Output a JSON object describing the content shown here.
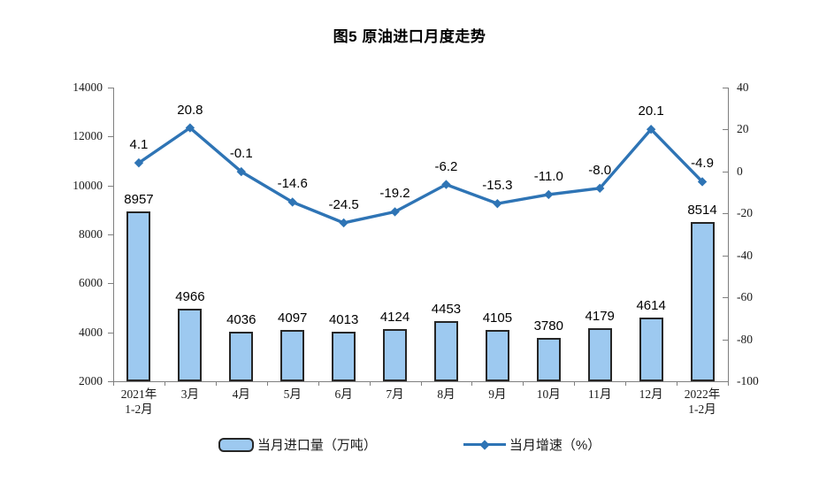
{
  "title": "图5 原油进口月度走势",
  "chart_data": {
    "type": "bar+line",
    "categories": [
      [
        "2021年",
        "1-2月"
      ],
      [
        "3月"
      ],
      [
        "4月"
      ],
      [
        "5月"
      ],
      [
        "6月"
      ],
      [
        "7月"
      ],
      [
        "8月"
      ],
      [
        "9月"
      ],
      [
        "10月"
      ],
      [
        "11月"
      ],
      [
        "12月"
      ],
      [
        "2022年",
        "1-2月"
      ]
    ],
    "series": [
      {
        "name": "当月进口量（万吨）",
        "type": "bar",
        "axis": "left",
        "values": [
          8957,
          4966,
          4036,
          4097,
          4013,
          4124,
          4453,
          4105,
          3780,
          4179,
          4614,
          8514
        ],
        "labels": [
          "8957",
          "4966",
          "4036",
          "4097",
          "4013",
          "4124",
          "4453",
          "4105",
          "3780",
          "4179",
          "4614",
          "8514"
        ],
        "fill": "#9DC9F0",
        "border": "#262626"
      },
      {
        "name": "当月增速（%）",
        "type": "line",
        "axis": "right",
        "values": [
          4.1,
          20.8,
          -0.1,
          -14.6,
          -24.5,
          -19.2,
          -6.2,
          -15.3,
          -11.0,
          -8.0,
          20.1,
          -4.9
        ],
        "labels": [
          "4.1",
          "20.8",
          "-0.1",
          "-14.6",
          "-24.5",
          "-19.2",
          "-6.2",
          "-15.3",
          "-11.0",
          "-8.0",
          "20.1",
          "-4.9"
        ],
        "color": "#2E74B5"
      }
    ],
    "left_axis": {
      "min": 2000,
      "max": 14000,
      "step": 2000,
      "ticks": [
        "2000",
        "4000",
        "6000",
        "8000",
        "10000",
        "12000",
        "14000"
      ]
    },
    "right_axis": {
      "min": -100,
      "max": 40,
      "step": 20,
      "ticks": [
        "-100",
        "-80",
        "-60",
        "-40",
        "-20",
        "0",
        "20",
        "40"
      ]
    },
    "grid": false,
    "legend_position": "bottom"
  }
}
